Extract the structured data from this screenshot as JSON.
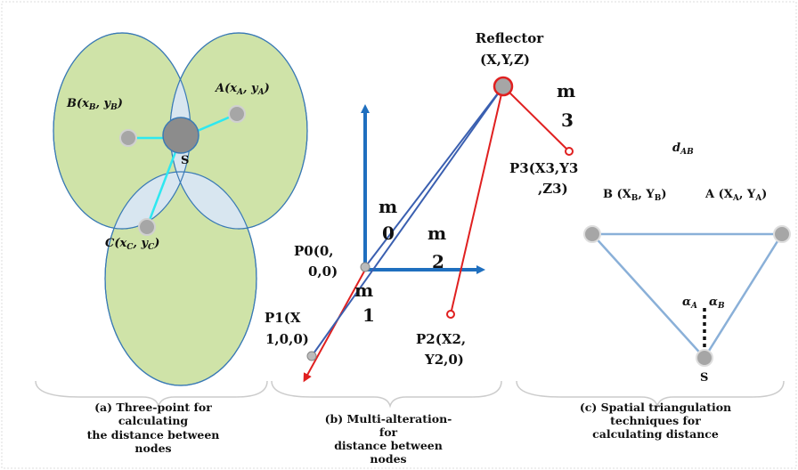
{
  "colors": {
    "ellipse_fill": "#cfe3a8",
    "overlap_fill": "#d8e6f0",
    "ellipse_stroke": "#3a7ab5",
    "node_fill": "#a6a6a6",
    "center_fill": "#8c8c8c",
    "cyan_link": "#2ee8f0",
    "axis_blue": "#1f6fbf",
    "red": "#e02020",
    "tri_stroke": "#8ab0d8"
  },
  "panel_a": {
    "node_a": "A(x",
    "node_a_sub": "A",
    "node_a_sep": ", y",
    "node_a_sub2": "A",
    "node_a_close": ")",
    "node_b": "B(x",
    "node_b_sub": "B",
    "node_b_sep": ", y",
    "node_b_sub2": "B",
    "node_b_close": ")",
    "node_c": "C(x",
    "node_c_sub": "C",
    "node_c_sep": ", y",
    "node_c_sub2": "C",
    "node_c_close": ")",
    "center": "S",
    "caption": [
      "(a) Three-point for",
      "calculating",
      "the distance between",
      "nodes"
    ]
  },
  "panel_b": {
    "reflector": [
      "Reflector",
      "(X,Y,Z)"
    ],
    "m0": [
      "m",
      "0"
    ],
    "m1": [
      "m",
      "1"
    ],
    "m2": [
      "m",
      "2"
    ],
    "m3": [
      "m",
      "3"
    ],
    "p0": [
      "P0(0,",
      "0,0)"
    ],
    "p1": [
      "P1(X",
      "1,0,0)"
    ],
    "p2": [
      "P2(X2,",
      "Y2,0)"
    ],
    "p3": [
      "P3(X3,Y3",
      ",Z3)"
    ],
    "caption": [
      "(b) Multi-alteration-",
      "for",
      "distance between",
      "nodes"
    ]
  },
  "panel_c": {
    "dab": "d",
    "dab_sub": "AB",
    "b_label": "B (X",
    "b_sub": "B",
    "b_sep": ", Y",
    "b_sub2": "B",
    "b_close": ")",
    "a_label": "A (X",
    "a_sub": "A",
    "a_sep": ", Y",
    "a_sub2": "A",
    "a_close": ")",
    "alpha_a": "α",
    "alpha_a_sub": "A",
    "alpha_b": "α",
    "alpha_b_sub": "B",
    "s": "S",
    "caption": [
      "(c) Spatial triangulation",
      "techniques for",
      "calculating distance"
    ]
  }
}
